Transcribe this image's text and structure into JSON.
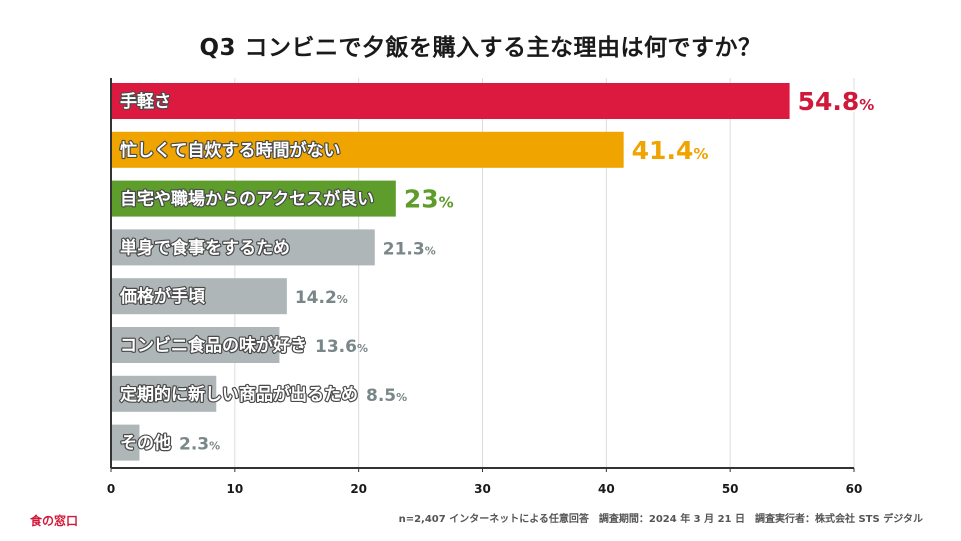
{
  "header": {
    "title": "Q3 コンビニで夕飯を購入する主な理由は何ですか？"
  },
  "chart_data": {
    "type": "bar",
    "orientation": "horizontal",
    "title": "Q3 コンビニで夕飯を購入する主な理由は何ですか？",
    "categories": [
      "手軽さ",
      "忙しくて自炊する時間がない",
      "自宅や職場からのアクセスが良い",
      "単身で食事をするため",
      "価格が手頃",
      "コンビニ食品の味が好き",
      "定期的に新しい商品が出るため",
      "その他"
    ],
    "values": [
      54.8,
      41.4,
      23,
      21.3,
      14.2,
      13.6,
      8.5,
      2.3
    ],
    "value_labels": [
      "54.8",
      "41.4",
      "23",
      "21.3",
      "14.2",
      "13.6",
      "8.5",
      "2.3"
    ],
    "unit": "%",
    "colors": [
      "#dc1a40",
      "#f0a400",
      "#5e9c2b",
      "#aeb6b7",
      "#aeb6b7",
      "#aeb6b7",
      "#aeb6b7",
      "#aeb6b7"
    ],
    "value_colors": [
      "#d0193a",
      "#f0a400",
      "#5e9c2b",
      "#7a8788",
      "#7a8788",
      "#7a8788",
      "#7a8788",
      "#7a8788"
    ],
    "highlight_count": 3,
    "xlim": [
      0,
      60
    ],
    "xticks": [
      0,
      10,
      20,
      30,
      40,
      50,
      60
    ],
    "grid": true,
    "xlabel": "",
    "ylabel": ""
  },
  "footer": {
    "brand": "食の窓口",
    "note": "n=2,407 インターネットによる任意回答　調査期間：2024 年 3 月 21 日　調査実行者：株式会社 STS デジタル"
  }
}
